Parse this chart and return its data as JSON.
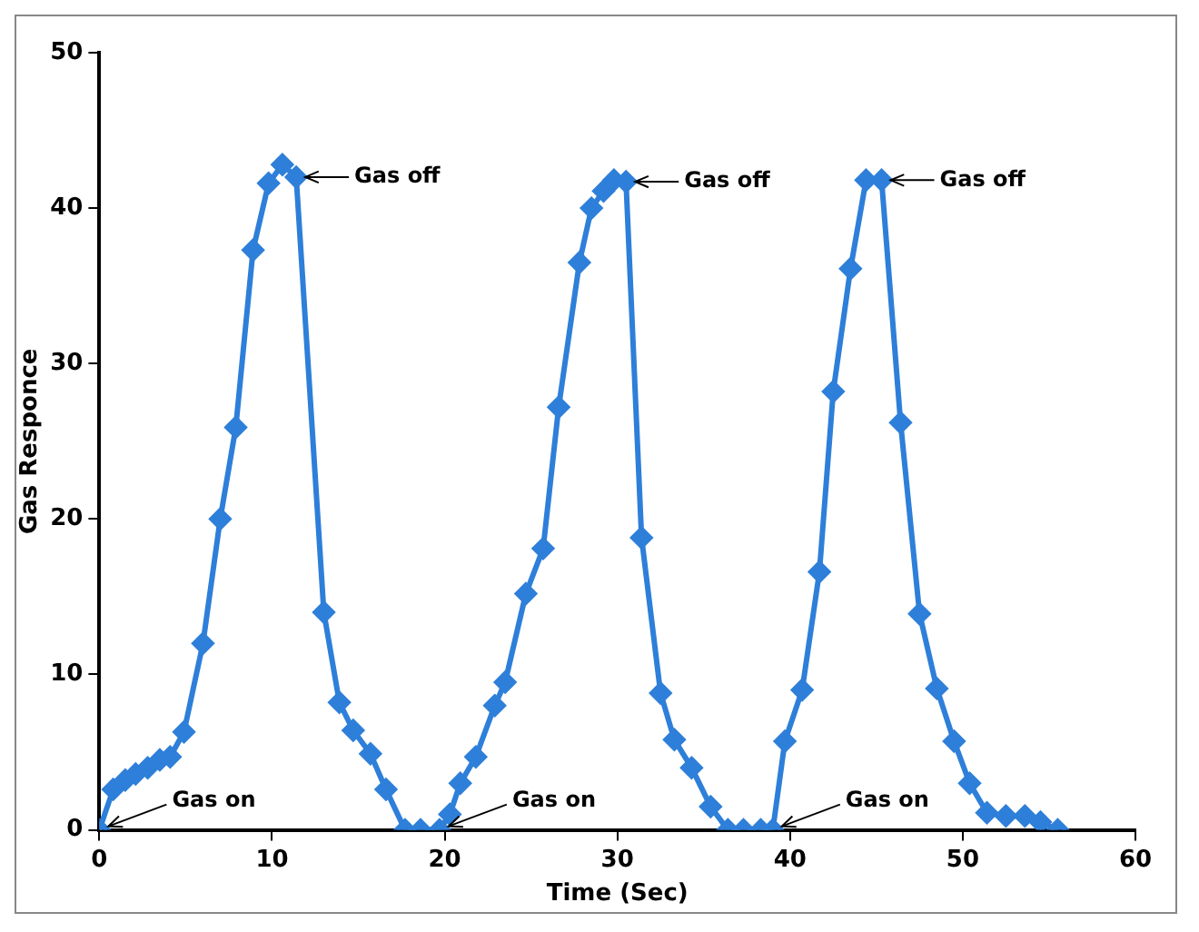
{
  "chart_data": {
    "type": "line",
    "xlabel": "Time (Sec)",
    "ylabel": "Gas Responce",
    "xlim": [
      0,
      60
    ],
    "xticks": [
      0,
      10,
      20,
      30,
      40,
      50,
      60
    ],
    "ylim": [
      0,
      50
    ],
    "yticks": [
      0,
      10,
      20,
      30,
      40,
      50
    ],
    "grid": false,
    "legend": false,
    "marker": "diamond",
    "line_style": "solid",
    "series": [
      {
        "color": "#2e7fd9",
        "x": [
          0,
          0.8,
          1.5,
          2.1,
          2.8,
          3.5,
          4.1,
          4.9,
          6,
          7,
          7.9,
          8.9,
          9.8,
          10.6,
          11.4,
          13,
          13.9,
          14.7,
          15.7,
          16.6,
          17.7,
          18.6,
          19.7,
          20.3,
          20.9,
          21.8,
          22.9,
          23.5,
          24.7,
          25.7,
          26.6,
          27.8,
          28.5,
          29.2,
          29.8,
          30.5,
          31.4,
          32.5,
          33.3,
          34.3,
          35.4,
          36.4,
          37.3,
          38.3,
          39,
          39.7,
          40.7,
          41.7,
          42.5,
          43.5,
          44.4,
          45.3,
          46.4,
          47.5,
          48.5,
          49.5,
          50.4,
          51.4,
          52.5,
          53.6,
          54.5,
          55.5
        ],
        "values": [
          0,
          2.6,
          3.2,
          3.6,
          4,
          4.5,
          4.7,
          6.3,
          12,
          20,
          25.9,
          37.3,
          41.6,
          42.8,
          42,
          14,
          8.2,
          6.4,
          4.9,
          2.6,
          0,
          0,
          0,
          1,
          3,
          4.7,
          8,
          9.5,
          15.2,
          18.1,
          27.2,
          36.5,
          40,
          41.1,
          41.8,
          41.7,
          18.8,
          8.8,
          5.8,
          4,
          1.5,
          0,
          0,
          0,
          0,
          5.7,
          9,
          16.6,
          28.2,
          36.1,
          41.8,
          41.8,
          26.2,
          13.9,
          9.1,
          5.7,
          3,
          1.1,
          0.9,
          0.9,
          0.5,
          0
        ]
      }
    ],
    "annotations": [
      {
        "text": "Gas on",
        "x": 0,
        "y": 0
      },
      {
        "text": "Gas on",
        "x": 19.7,
        "y": 0
      },
      {
        "text": "Gas on",
        "x": 39,
        "y": 0
      },
      {
        "text": "Gas off",
        "x": 11.4,
        "y": 42
      },
      {
        "text": "Gas off",
        "x": 30.5,
        "y": 41.7
      },
      {
        "text": "Gas off",
        "x": 45.3,
        "y": 41.8
      }
    ]
  }
}
